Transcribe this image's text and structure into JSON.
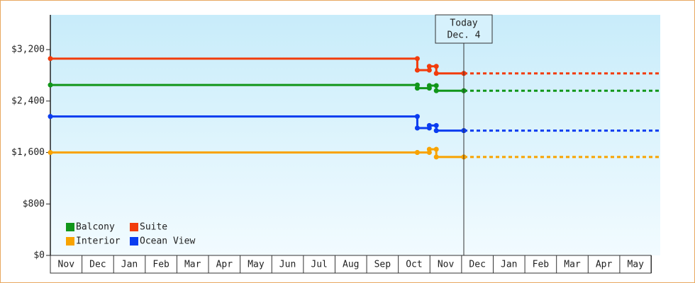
{
  "chart_data": {
    "type": "step-line",
    "ylim": [
      0,
      3740
    ],
    "yticks": [
      {
        "value": 0,
        "label": "$0"
      },
      {
        "value": 800,
        "label": "$800"
      },
      {
        "value": 1600,
        "label": "$1,600"
      },
      {
        "value": 2400,
        "label": "$2,400"
      },
      {
        "value": 3200,
        "label": "$3,200"
      }
    ],
    "xlim": [
      0,
      19.28
    ],
    "xticks": [
      {
        "value": 0.5,
        "label": "Nov"
      },
      {
        "value": 1.5,
        "label": "Dec"
      },
      {
        "value": 2.5,
        "label": "Jan"
      },
      {
        "value": 3.5,
        "label": "Feb"
      },
      {
        "value": 4.5,
        "label": "Mar"
      },
      {
        "value": 5.5,
        "label": "Apr"
      },
      {
        "value": 6.5,
        "label": "May"
      },
      {
        "value": 7.5,
        "label": "Jun"
      },
      {
        "value": 8.5,
        "label": "Jul"
      },
      {
        "value": 9.5,
        "label": "Aug"
      },
      {
        "value": 10.5,
        "label": "Sep"
      },
      {
        "value": 11.5,
        "label": "Oct"
      },
      {
        "value": 12.5,
        "label": "Nov"
      },
      {
        "value": 13.5,
        "label": "Dec"
      },
      {
        "value": 14.5,
        "label": "Jan"
      },
      {
        "value": 15.5,
        "label": "Feb"
      },
      {
        "value": 16.5,
        "label": "Mar"
      },
      {
        "value": 17.5,
        "label": "Apr"
      },
      {
        "value": 18.5,
        "label": "May"
      }
    ],
    "today": {
      "x": 13.07,
      "label": [
        "Today",
        "Dec. 4"
      ]
    },
    "legend": "bottom-left",
    "series": [
      {
        "name": "Balcony",
        "color": "#11961a",
        "x": [
          0,
          11.6,
          11.98,
          12.2,
          13.07
        ],
        "values": [
          2650,
          2600,
          2640,
          2560,
          2560
        ]
      },
      {
        "name": "Suite",
        "color": "#f23c0c",
        "x": [
          0,
          11.6,
          11.98,
          12.2,
          13.07
        ],
        "values": [
          3060,
          2880,
          2940,
          2830,
          2830
        ]
      },
      {
        "name": "Interior",
        "color": "#f8a300",
        "x": [
          0,
          11.6,
          11.98,
          12.2,
          13.07
        ],
        "values": [
          1600,
          1600,
          1650,
          1530,
          1530
        ]
      },
      {
        "name": "Ocean View",
        "color": "#0a3cf0",
        "x": [
          0,
          11.6,
          11.98,
          12.2,
          13.07
        ],
        "values": [
          2160,
          1980,
          2020,
          1940,
          1940
        ]
      }
    ]
  }
}
